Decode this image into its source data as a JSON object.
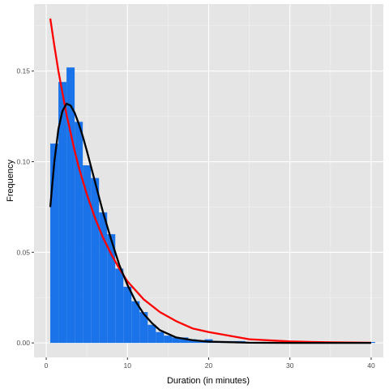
{
  "chart_data": {
    "type": "bar",
    "title": "",
    "xlabel": "Duration (in minutes)",
    "ylabel": "Frequency",
    "xlim": [
      -1.5,
      41.5
    ],
    "ylim": [
      -0.008,
      0.187
    ],
    "x_ticks": [
      0,
      10,
      20,
      30,
      40
    ],
    "x_tick_labels": [
      "0",
      "10",
      "20",
      "30",
      "40"
    ],
    "y_ticks": [
      0.0,
      0.05,
      0.1,
      0.15
    ],
    "y_tick_labels": [
      "0.00",
      "0.05",
      "0.10",
      "0.15"
    ],
    "grid": true,
    "background": "#e5e5e5",
    "histogram": {
      "bin_width": 1,
      "bin_starts": [
        0.5,
        1.5,
        2.5,
        3.5,
        4.5,
        5.5,
        6.5,
        7.5,
        8.5,
        9.5,
        10.5,
        11.5,
        12.5,
        13.5,
        14.5,
        15.5,
        16.5,
        17.5,
        18.5,
        19.5,
        20.5,
        21.5,
        22.5,
        23.5,
        24.5,
        25.5,
        26.5,
        27.5,
        28.5,
        29.5,
        30.5,
        31.5,
        32.5,
        33.5,
        34.5,
        35.5,
        36.5,
        37.5,
        38.5,
        39.5
      ],
      "values": [
        0.11,
        0.144,
        0.152,
        0.122,
        0.098,
        0.091,
        0.072,
        0.06,
        0.041,
        0.031,
        0.023,
        0.017,
        0.01,
        0.006,
        0.004,
        0.003,
        0.003,
        0.002,
        0.001,
        0.002,
        0.001,
        0.001,
        0.001,
        0.001,
        0.0005,
        0.0005,
        0.0005,
        0.0005,
        0.0005,
        0.0005,
        0.0005,
        0.0005,
        0.0005,
        0.0005,
        0.0005,
        0.0005,
        0.0005,
        0.0005,
        0.0005,
        0.0005
      ],
      "color": "#1a73e8"
    },
    "series": [
      {
        "type": "line",
        "color": "#ff0000",
        "x": [
          0.5,
          1,
          1.5,
          2,
          2.5,
          3,
          3.5,
          4,
          5,
          6,
          7,
          8,
          9,
          10,
          12,
          14,
          16,
          18,
          20,
          25,
          30,
          35,
          40
        ],
        "values": [
          0.179,
          0.164,
          0.15,
          0.138,
          0.126,
          0.116,
          0.106,
          0.097,
          0.082,
          0.069,
          0.058,
          0.049,
          0.041,
          0.034,
          0.024,
          0.017,
          0.012,
          0.008,
          0.006,
          0.002,
          0.0008,
          0.0003,
          0.0001
        ]
      },
      {
        "type": "line",
        "color": "#000000",
        "x": [
          0.5,
          1,
          1.5,
          2,
          2.5,
          3,
          3.5,
          4,
          4.5,
          5,
          6,
          7,
          8,
          9,
          10,
          11,
          12,
          13,
          14,
          15,
          16,
          18,
          20,
          25,
          30,
          35,
          40
        ],
        "values": [
          0.075,
          0.1,
          0.118,
          0.128,
          0.132,
          0.131,
          0.127,
          0.121,
          0.114,
          0.106,
          0.089,
          0.072,
          0.057,
          0.043,
          0.032,
          0.023,
          0.016,
          0.011,
          0.007,
          0.005,
          0.003,
          0.0015,
          0.0007,
          0.0001,
          0.0,
          0.0,
          0.0
        ]
      }
    ]
  }
}
